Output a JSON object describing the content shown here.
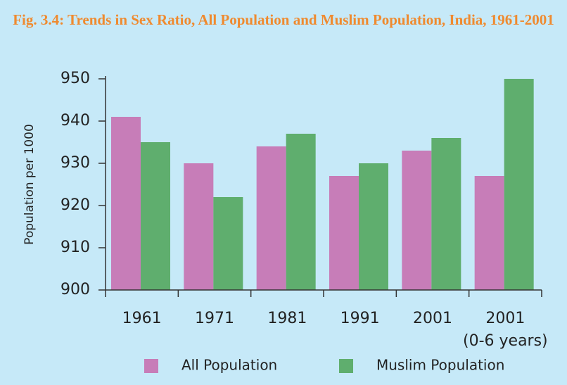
{
  "chart_data": {
    "type": "bar",
    "title": "Fig. 3.4: Trends in Sex Ratio, All Population and Muslim Population, India, 1961-2001",
    "y_label": "Population per 1000",
    "categories": [
      "1961",
      "1971",
      "1981",
      "1991",
      "2001",
      "2001\n(0-6 years)"
    ],
    "series": [
      {
        "name": "All Population",
        "color": "#c77db8",
        "values": [
          941,
          930,
          934,
          927,
          933,
          927
        ]
      },
      {
        "name": "Muslim Population",
        "color": "#5fae6e",
        "values": [
          935,
          922,
          937,
          930,
          936,
          950
        ]
      }
    ],
    "ylim": [
      900,
      950
    ],
    "yticks": [
      900,
      910,
      920,
      930,
      940,
      950
    ],
    "legend": "bottom"
  }
}
